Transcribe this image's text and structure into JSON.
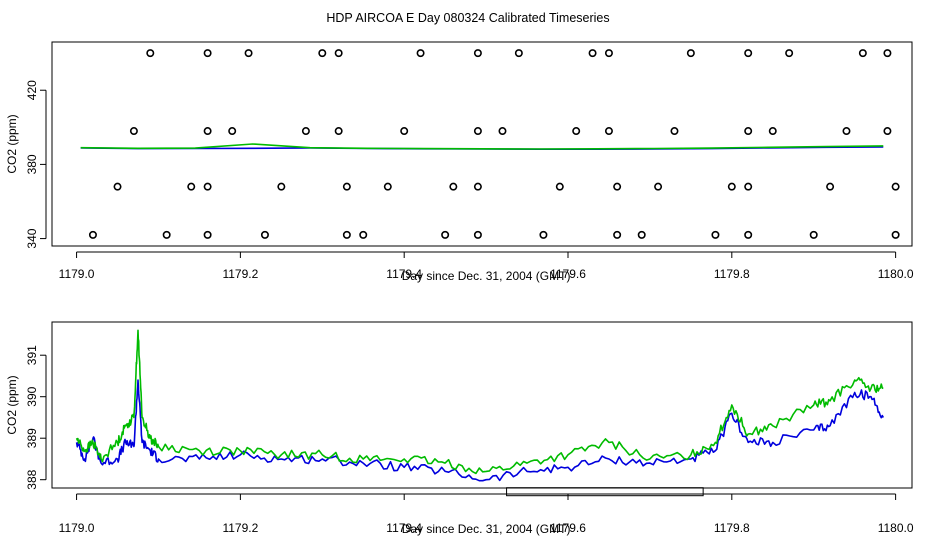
{
  "title": "HDP AIRCOA E  Day 080324  Calibrated Timeseries",
  "colors": {
    "blue": "#0000dd",
    "green": "#00bb00",
    "axis": "#000000"
  },
  "chart_data": [
    {
      "type": "line",
      "xlabel": "Day since Dec. 31, 2004 (GMT)",
      "ylabel": "CO2 (ppm)",
      "xlim": [
        1178.97,
        1180.02
      ],
      "ylim": [
        336,
        446
      ],
      "xticks": [
        "1179.0",
        "1179.2",
        "1179.4",
        "1179.6",
        "1179.8",
        "1180.0"
      ],
      "yticks": [
        "340",
        "380",
        "420"
      ],
      "grid": false,
      "series": [
        {
          "color": "blue",
          "x_start": 1179.005,
          "x_end": 1179.985,
          "values": [
            388.9,
            388.5,
            388.6,
            388.7,
            388.9,
            388.6,
            388.4,
            388.3,
            388.2,
            388.2,
            388.3,
            388.5,
            388.9,
            389.2,
            389.4
          ]
        },
        {
          "color": "green",
          "x_start": 1179.005,
          "x_end": 1179.985,
          "values": [
            389.0,
            388.7,
            388.8,
            391.0,
            389.0,
            388.7,
            388.5,
            388.4,
            388.3,
            388.4,
            388.6,
            388.8,
            389.2,
            389.6,
            390.0
          ]
        }
      ],
      "scatter_series": [
        {
          "name": "",
          "y": 440,
          "x": [
            1179.09,
            1179.16,
            1179.21,
            1179.3,
            1179.32,
            1179.42,
            1179.49,
            1179.54,
            1179.63,
            1179.65,
            1179.75,
            1179.82,
            1179.87,
            1179.96,
            1179.99
          ]
        },
        {
          "name": "",
          "y": 398,
          "x": [
            1179.07,
            1179.16,
            1179.19,
            1179.28,
            1179.32,
            1179.4,
            1179.49,
            1179.52,
            1179.61,
            1179.65,
            1179.73,
            1179.82,
            1179.85,
            1179.94,
            1179.99
          ]
        },
        {
          "name": "",
          "y": 368,
          "x": [
            1179.05,
            1179.14,
            1179.16,
            1179.25,
            1179.33,
            1179.38,
            1179.46,
            1179.49,
            1179.59,
            1179.66,
            1179.71,
            1179.8,
            1179.82,
            1179.92,
            1180.0
          ]
        },
        {
          "name": "",
          "y": 342,
          "x": [
            1179.02,
            1179.11,
            1179.16,
            1179.23,
            1179.33,
            1179.35,
            1179.45,
            1179.49,
            1179.57,
            1179.66,
            1179.69,
            1179.78,
            1179.82,
            1179.9,
            1180.0
          ]
        }
      ]
    },
    {
      "type": "line",
      "xlabel": "Day since Dec. 31, 2004 (GMT)",
      "ylabel": "CO2 (ppm)",
      "xlim": [
        1178.97,
        1180.02
      ],
      "ylim": [
        387.8,
        391.8
      ],
      "xticks": [
        "1179.0",
        "1179.2",
        "1179.4",
        "1179.6",
        "1179.8",
        "1180.0"
      ],
      "yticks": [
        "388",
        "389",
        "390",
        "391"
      ],
      "grid": false,
      "series": [
        {
          "color": "blue",
          "x": [
            1179.0,
            1179.01,
            1179.02,
            1179.03,
            1179.05,
            1179.06,
            1179.07,
            1179.075,
            1179.08,
            1179.09,
            1179.1,
            1179.15,
            1179.2,
            1179.25,
            1179.3,
            1179.35,
            1179.4,
            1179.45,
            1179.5,
            1179.55,
            1179.6,
            1179.65,
            1179.7,
            1179.75,
            1179.78,
            1179.8,
            1179.82,
            1179.85,
            1179.9,
            1179.92,
            1179.95,
            1179.97,
            1179.985
          ],
          "y": [
            388.9,
            388.5,
            389.0,
            388.4,
            388.5,
            388.9,
            388.8,
            390.4,
            388.9,
            388.7,
            388.5,
            388.5,
            388.6,
            388.5,
            388.5,
            388.4,
            388.3,
            388.2,
            388.0,
            388.2,
            388.3,
            388.5,
            388.4,
            388.5,
            388.7,
            389.6,
            388.9,
            388.9,
            389.2,
            389.3,
            390.1,
            390.0,
            389.5
          ]
        },
        {
          "color": "green",
          "x": [
            1179.0,
            1179.01,
            1179.02,
            1179.03,
            1179.05,
            1179.06,
            1179.07,
            1179.075,
            1179.08,
            1179.09,
            1179.1,
            1179.15,
            1179.2,
            1179.25,
            1179.3,
            1179.35,
            1179.4,
            1179.45,
            1179.5,
            1179.55,
            1179.6,
            1179.65,
            1179.7,
            1179.75,
            1179.78,
            1179.8,
            1179.82,
            1179.85,
            1179.9,
            1179.92,
            1179.95,
            1179.97,
            1179.985
          ],
          "y": [
            389.0,
            388.7,
            388.9,
            388.5,
            388.9,
            389.3,
            389.5,
            391.6,
            389.5,
            389.0,
            388.8,
            388.7,
            388.7,
            388.6,
            388.6,
            388.5,
            388.5,
            388.4,
            388.2,
            388.4,
            388.6,
            388.9,
            388.5,
            388.6,
            388.9,
            389.8,
            389.1,
            389.3,
            389.8,
            389.9,
            390.4,
            390.2,
            390.2
          ]
        }
      ],
      "bracket": {
        "x": [
          1179.525,
          1179.765
        ],
        "y": 388.0
      }
    }
  ]
}
